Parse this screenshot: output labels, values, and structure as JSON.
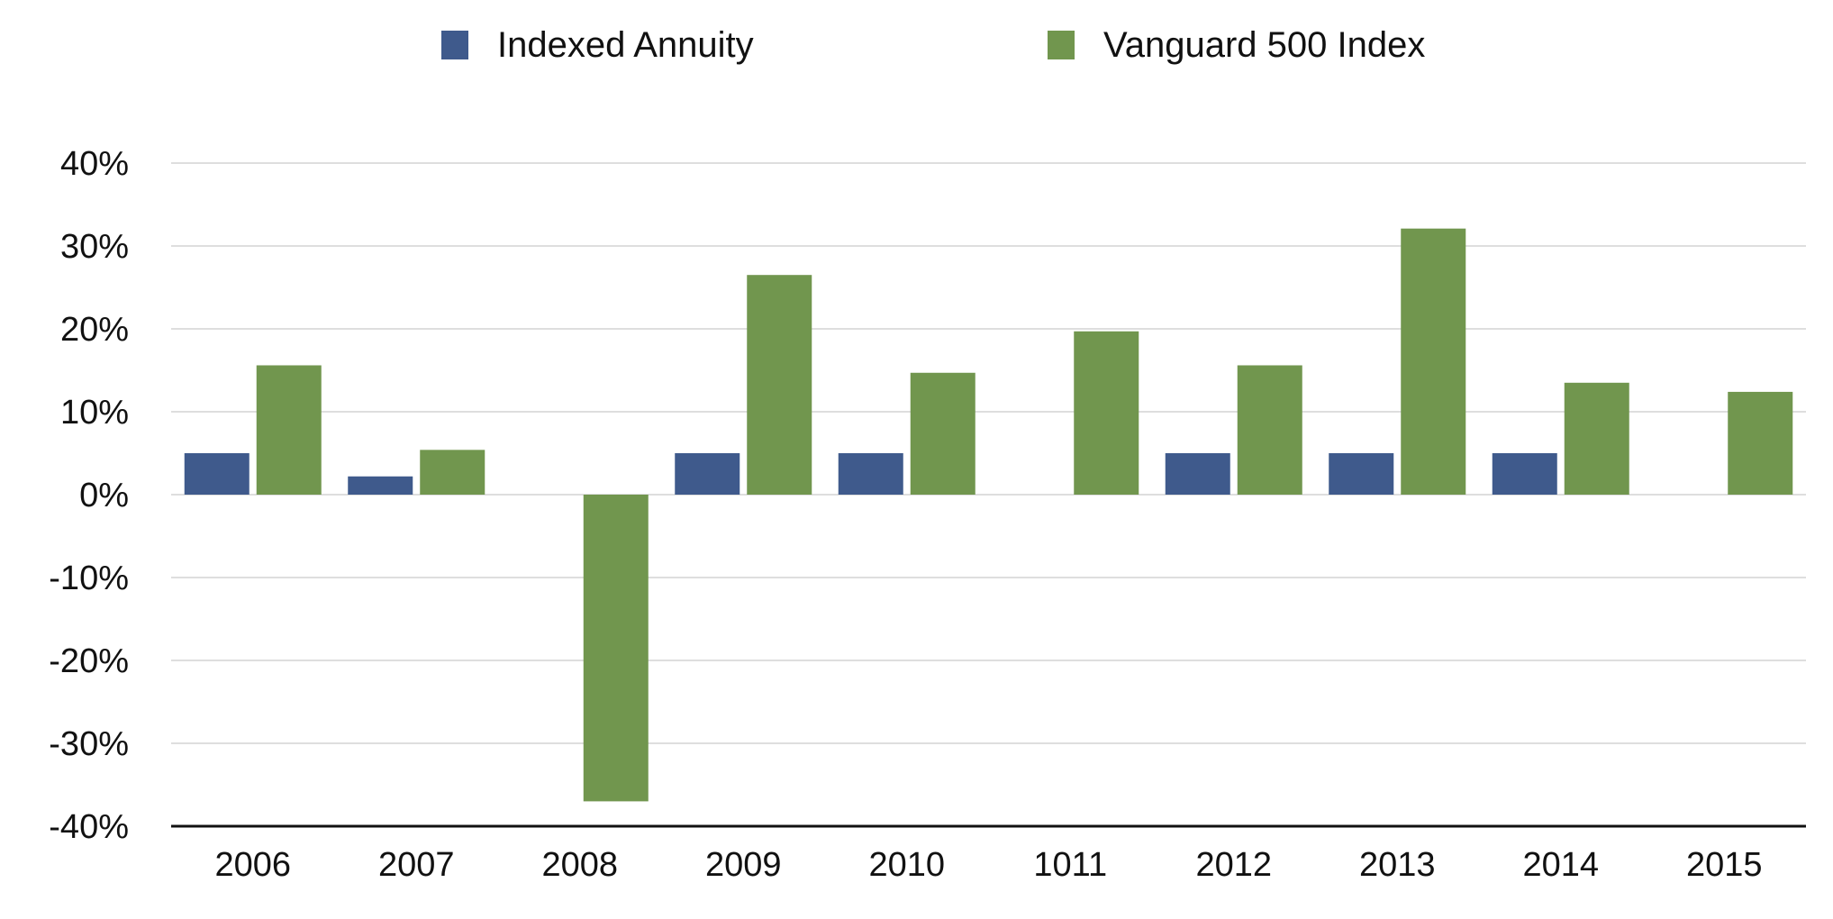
{
  "chart_data": {
    "type": "bar",
    "title": "",
    "xlabel": "",
    "ylabel": "",
    "categories": [
      "2006",
      "2007",
      "2008",
      "2009",
      "2010",
      "1011",
      "2012",
      "2013",
      "2014",
      "2015"
    ],
    "series": [
      {
        "name": "Indexed Annuity",
        "color": "#3f5a8c",
        "values": [
          5.0,
          2.2,
          0,
          5.0,
          5.0,
          0,
          5.0,
          5.0,
          5.0,
          0
        ]
      },
      {
        "name": "Vanguard 500 Index",
        "color": "#71964e",
        "values": [
          15.6,
          5.4,
          -37.0,
          26.5,
          14.7,
          19.7,
          15.6,
          32.1,
          13.5,
          12.4
        ]
      }
    ],
    "ylim": [
      -40,
      40
    ],
    "yticks": [
      40,
      30,
      20,
      10,
      0,
      -10,
      -20,
      -30,
      -40
    ],
    "ytick_labels": [
      "40%",
      "30%",
      "20%",
      "10%",
      "0%",
      "-10%",
      "-20%",
      "-30%",
      "-40%"
    ],
    "grid": true,
    "legend_position": "top"
  }
}
